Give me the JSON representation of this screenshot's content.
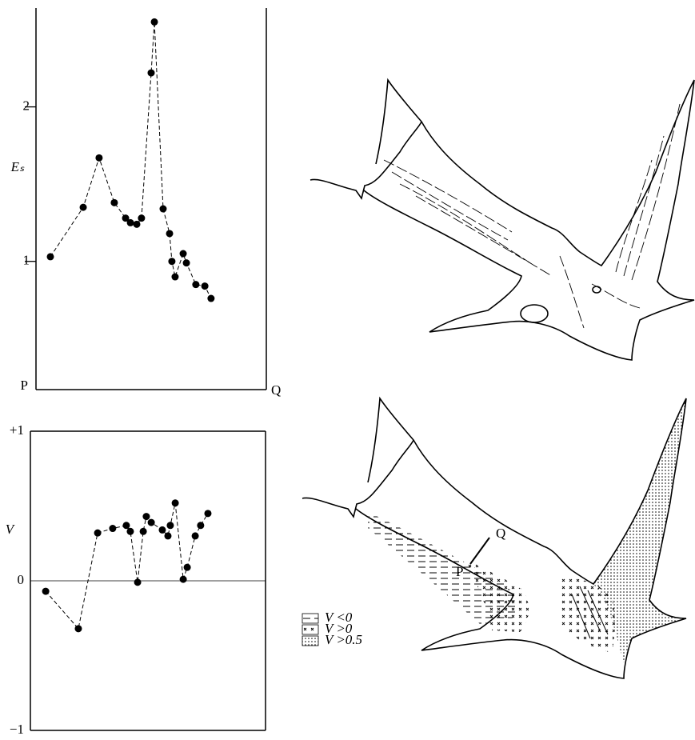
{
  "chart_data": [
    {
      "type": "line",
      "y_label": "Eₛ",
      "x_labels": [
        "P",
        "Q"
      ],
      "xlim": [
        0,
        1
      ],
      "ylim": [
        0.17,
        2.64
      ],
      "yticks": [
        1,
        2
      ],
      "series": [
        {
          "color": "#000000",
          "x": [
            0.0625,
            0.205,
            0.274,
            0.34,
            0.389,
            0.41,
            0.4375,
            0.458,
            0.5,
            0.514,
            0.552,
            0.58,
            0.59,
            0.604,
            0.639,
            0.653,
            0.694,
            0.733,
            0.76
          ],
          "values": [
            1.03,
            1.35,
            1.67,
            1.38,
            1.28,
            1.25,
            1.24,
            1.28,
            2.22,
            2.55,
            1.34,
            1.18,
            1.0,
            0.9,
            1.05,
            0.99,
            0.85,
            0.84,
            0.76
          ]
        }
      ]
    },
    {
      "type": "line",
      "y_label": "V",
      "xlim": [
        0,
        1
      ],
      "ylim": [
        -1,
        1
      ],
      "yticks": [
        {
          "value": 1,
          "label": "+1"
        },
        0,
        {
          "value": -1,
          "label": "−1"
        }
      ],
      "series": [
        {
          "color": "#000000",
          "x": [
            0.065,
            0.204,
            0.286,
            0.35,
            0.408,
            0.425,
            0.456,
            0.48,
            0.493,
            0.514,
            0.561,
            0.585,
            0.595,
            0.616,
            0.65,
            0.667,
            0.701,
            0.724,
            0.755
          ],
          "values": [
            -0.07,
            -0.32,
            0.32,
            0.35,
            0.37,
            0.33,
            -0.01,
            0.33,
            0.43,
            0.39,
            0.34,
            0.3,
            0.37,
            0.52,
            0.01,
            0.09,
            0.3,
            0.37,
            0.45
          ]
        }
      ]
    }
  ],
  "diagram": {
    "section_labels": [
      "P",
      "Q"
    ],
    "legend": [
      "V <0",
      "V >0",
      "V >0.5"
    ]
  }
}
